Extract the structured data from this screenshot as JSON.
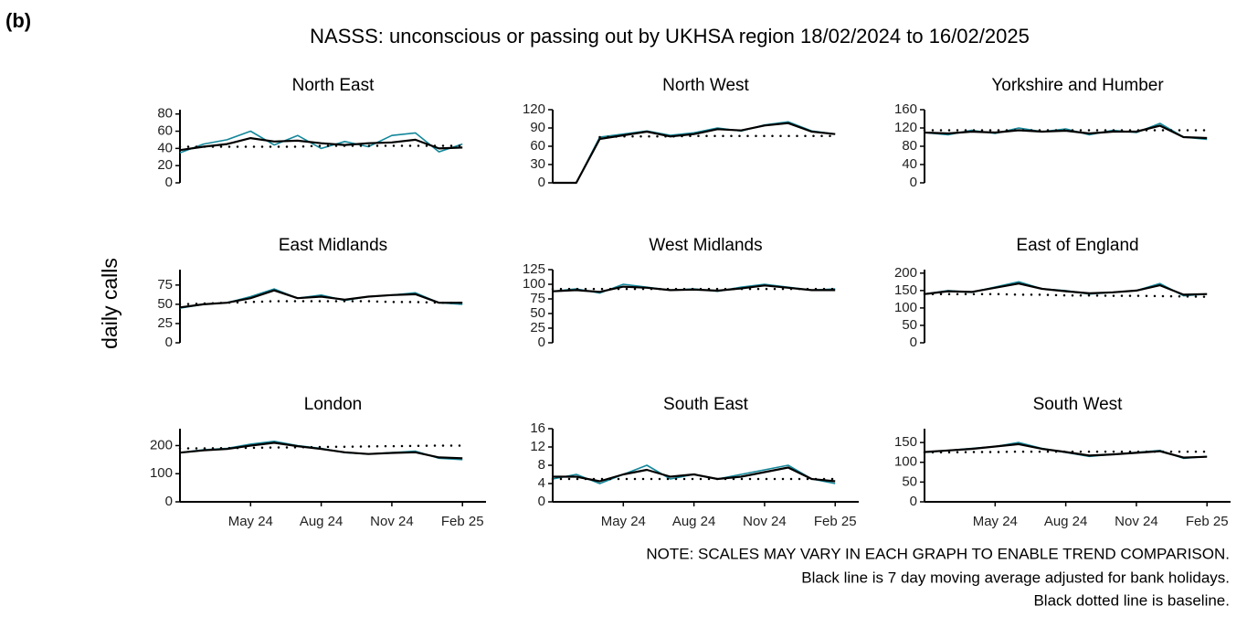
{
  "panel_label": "(b)",
  "title": "NASSS: unconscious or passing out by UKHSA region 18/02/2024 to 16/02/2025",
  "y_label": "daily calls",
  "notes": [
    "NOTE: SCALES MAY VARY IN EACH GRAPH TO ENABLE TREND COMPARISON.",
    "Black line is 7 day moving average adjusted for bank holidays.",
    "Black dotted line is baseline."
  ],
  "chart_data": [
    {
      "type": "line",
      "title": "North East",
      "x": [
        "2024-02",
        "2024-03",
        "2024-04",
        "2024-05",
        "2024-06",
        "2024-07",
        "2024-08",
        "2024-09",
        "2024-10",
        "2024-11",
        "2024-12",
        "2025-01",
        "2025-02"
      ],
      "xlim": [
        "2024-02",
        "2025-03"
      ],
      "ylim": [
        0,
        85
      ],
      "yticks": [
        0,
        20,
        40,
        60,
        80
      ],
      "series": [
        {
          "color": "#13879a",
          "style": "solid",
          "values": [
            35,
            45,
            50,
            60,
            44,
            55,
            40,
            48,
            42,
            55,
            58,
            36,
            45
          ]
        },
        {
          "color": "#000000",
          "style": "solid",
          "values": [
            38,
            42,
            45,
            52,
            48,
            49,
            46,
            44,
            46,
            47,
            50,
            40,
            41
          ]
        },
        {
          "color": "#000000",
          "style": "dotted",
          "values": [
            42,
            42,
            42,
            42,
            42,
            42,
            43,
            43,
            43,
            43,
            43,
            43,
            43
          ]
        }
      ]
    },
    {
      "type": "line",
      "title": "North West",
      "x": [
        "2024-02",
        "2024-03",
        "2024-04",
        "2024-05",
        "2024-06",
        "2024-07",
        "2024-08",
        "2024-09",
        "2024-10",
        "2024-11",
        "2024-12",
        "2025-01",
        "2025-02"
      ],
      "xlim": [
        "2024-02",
        "2025-03"
      ],
      "ylim": [
        0,
        120
      ],
      "yticks": [
        0,
        30,
        60,
        90,
        120
      ],
      "series": [
        {
          "color": "#13879a",
          "style": "solid",
          "values": [
            0,
            0,
            75,
            80,
            85,
            78,
            82,
            90,
            85,
            95,
            100,
            85,
            80
          ]
        },
        {
          "color": "#000000",
          "style": "solid",
          "values": [
            0,
            0,
            72,
            78,
            84,
            76,
            80,
            88,
            86,
            94,
            98,
            84,
            80
          ]
        },
        {
          "color": "#000000",
          "style": "dotted",
          "values": [
            null,
            null,
            75,
            76,
            76,
            76,
            77,
            77,
            77,
            77,
            77,
            77,
            77
          ]
        }
      ]
    },
    {
      "type": "line",
      "title": "Yorkshire and Humber",
      "x": [
        "2024-02",
        "2024-03",
        "2024-04",
        "2024-05",
        "2024-06",
        "2024-07",
        "2024-08",
        "2024-09",
        "2024-10",
        "2024-11",
        "2024-12",
        "2025-01",
        "2025-02"
      ],
      "xlim": [
        "2024-02",
        "2025-03"
      ],
      "ylim": [
        0,
        160
      ],
      "yticks": [
        0,
        40,
        80,
        120,
        160
      ],
      "series": [
        {
          "color": "#13879a",
          "style": "solid",
          "values": [
            110,
            105,
            115,
            108,
            120,
            112,
            118,
            105,
            115,
            110,
            130,
            100,
            95
          ]
        },
        {
          "color": "#000000",
          "style": "solid",
          "values": [
            110,
            108,
            112,
            110,
            115,
            112,
            114,
            108,
            112,
            112,
            125,
            100,
            98
          ]
        },
        {
          "color": "#000000",
          "style": "dotted",
          "values": [
            115,
            115,
            115,
            115,
            115,
            115,
            115,
            115,
            115,
            115,
            115,
            115,
            115
          ]
        }
      ]
    },
    {
      "type": "line",
      "title": "East Midlands",
      "x": [
        "2024-02",
        "2024-03",
        "2024-04",
        "2024-05",
        "2024-06",
        "2024-07",
        "2024-08",
        "2024-09",
        "2024-10",
        "2024-11",
        "2024-12",
        "2025-01",
        "2025-02"
      ],
      "xlim": [
        "2024-02",
        "2025-03"
      ],
      "ylim": [
        0,
        95
      ],
      "yticks": [
        0,
        25,
        50,
        75
      ],
      "series": [
        {
          "color": "#13879a",
          "style": "solid",
          "values": [
            45,
            50,
            52,
            60,
            70,
            58,
            62,
            55,
            60,
            62,
            65,
            52,
            50
          ]
        },
        {
          "color": "#000000",
          "style": "solid",
          "values": [
            46,
            50,
            52,
            58,
            68,
            58,
            60,
            56,
            60,
            62,
            63,
            52,
            52
          ]
        },
        {
          "color": "#000000",
          "style": "dotted",
          "values": [
            50,
            51,
            52,
            53,
            54,
            54,
            54,
            54,
            54,
            53,
            53,
            52,
            52
          ]
        }
      ]
    },
    {
      "type": "line",
      "title": "West Midlands",
      "x": [
        "2024-02",
        "2024-03",
        "2024-04",
        "2024-05",
        "2024-06",
        "2024-07",
        "2024-08",
        "2024-09",
        "2024-10",
        "2024-11",
        "2024-12",
        "2025-01",
        "2025-02"
      ],
      "xlim": [
        "2024-02",
        "2025-03"
      ],
      "ylim": [
        0,
        125
      ],
      "yticks": [
        0,
        25,
        50,
        75,
        100,
        125
      ],
      "series": [
        {
          "color": "#13879a",
          "style": "solid",
          "values": [
            88,
            92,
            85,
            100,
            95,
            90,
            92,
            88,
            95,
            100,
            95,
            90,
            92
          ]
        },
        {
          "color": "#000000",
          "style": "solid",
          "values": [
            88,
            90,
            87,
            96,
            94,
            90,
            91,
            89,
            93,
            98,
            94,
            90,
            90
          ]
        },
        {
          "color": "#000000",
          "style": "dotted",
          "values": [
            92,
            92,
            92,
            92,
            92,
            92,
            92,
            92,
            92,
            92,
            92,
            92,
            92
          ]
        }
      ]
    },
    {
      "type": "line",
      "title": "East of England",
      "x": [
        "2024-02",
        "2024-03",
        "2024-04",
        "2024-05",
        "2024-06",
        "2024-07",
        "2024-08",
        "2024-09",
        "2024-10",
        "2024-11",
        "2024-12",
        "2025-01",
        "2025-02"
      ],
      "xlim": [
        "2024-02",
        "2025-03"
      ],
      "ylim": [
        0,
        210
      ],
      "yticks": [
        0,
        50,
        100,
        150,
        200
      ],
      "series": [
        {
          "color": "#13879a",
          "style": "solid",
          "values": [
            140,
            150,
            145,
            160,
            175,
            155,
            150,
            140,
            145,
            150,
            170,
            135,
            140
          ]
        },
        {
          "color": "#000000",
          "style": "solid",
          "values": [
            140,
            148,
            146,
            158,
            170,
            155,
            148,
            142,
            145,
            150,
            165,
            138,
            140
          ]
        },
        {
          "color": "#000000",
          "style": "dotted",
          "values": [
            140,
            140,
            140,
            140,
            138,
            138,
            136,
            136,
            135,
            135,
            134,
            133,
            132
          ]
        }
      ]
    },
    {
      "type": "line",
      "title": "London",
      "x": [
        "2024-02",
        "2024-03",
        "2024-04",
        "2024-05",
        "2024-06",
        "2024-07",
        "2024-08",
        "2024-09",
        "2024-10",
        "2024-11",
        "2024-12",
        "2025-01",
        "2025-02"
      ],
      "xlim": [
        "2024-02",
        "2025-03"
      ],
      "ylim": [
        0,
        260
      ],
      "yticks": [
        0,
        100,
        200
      ],
      "xticks": [
        {
          "value": "2024-05",
          "label": "May 24"
        },
        {
          "value": "2024-08",
          "label": "Aug 24"
        },
        {
          "value": "2024-11",
          "label": "Nov 24"
        },
        {
          "value": "2025-02",
          "label": "Feb 25"
        }
      ],
      "series": [
        {
          "color": "#13879a",
          "style": "solid",
          "values": [
            175,
            185,
            190,
            205,
            215,
            200,
            190,
            175,
            170,
            175,
            180,
            155,
            150
          ]
        },
        {
          "color": "#000000",
          "style": "solid",
          "values": [
            175,
            183,
            188,
            200,
            210,
            198,
            188,
            176,
            170,
            174,
            176,
            158,
            155
          ]
        },
        {
          "color": "#000000",
          "style": "dotted",
          "values": [
            190,
            190,
            191,
            192,
            193,
            194,
            195,
            196,
            197,
            198,
            199,
            200,
            200
          ]
        }
      ]
    },
    {
      "type": "line",
      "title": "South East",
      "x": [
        "2024-02",
        "2024-03",
        "2024-04",
        "2024-05",
        "2024-06",
        "2024-07",
        "2024-08",
        "2024-09",
        "2024-10",
        "2024-11",
        "2024-12",
        "2025-01",
        "2025-02"
      ],
      "xlim": [
        "2024-02",
        "2025-03"
      ],
      "ylim": [
        0,
        16
      ],
      "yticks": [
        0,
        4,
        8,
        12,
        16
      ],
      "xticks": [
        {
          "value": "2024-05",
          "label": "May 24"
        },
        {
          "value": "2024-08",
          "label": "Aug 24"
        },
        {
          "value": "2024-11",
          "label": "Nov 24"
        },
        {
          "value": "2025-02",
          "label": "Feb 25"
        }
      ],
      "series": [
        {
          "color": "#13879a",
          "style": "solid",
          "values": [
            5,
            6,
            4,
            6,
            8,
            5,
            6,
            5,
            6,
            7,
            8,
            5,
            4
          ]
        },
        {
          "color": "#000000",
          "style": "solid",
          "values": [
            5.5,
            5.5,
            4.5,
            6,
            7,
            5.5,
            6,
            5,
            5.5,
            6.5,
            7.5,
            5,
            4.5
          ]
        },
        {
          "color": "#000000",
          "style": "dotted",
          "values": [
            5,
            5,
            5,
            5,
            5,
            5,
            5,
            5,
            5,
            5,
            5,
            5,
            5
          ]
        }
      ]
    },
    {
      "type": "line",
      "title": "South West",
      "x": [
        "2024-02",
        "2024-03",
        "2024-04",
        "2024-05",
        "2024-06",
        "2024-07",
        "2024-08",
        "2024-09",
        "2024-10",
        "2024-11",
        "2024-12",
        "2025-01",
        "2025-02"
      ],
      "xlim": [
        "2024-02",
        "2025-03"
      ],
      "ylim": [
        0,
        185
      ],
      "yticks": [
        0,
        50,
        100,
        150
      ],
      "xticks": [
        {
          "value": "2024-05",
          "label": "May 24"
        },
        {
          "value": "2024-08",
          "label": "Aug 24"
        },
        {
          "value": "2024-11",
          "label": "Nov 24"
        },
        {
          "value": "2025-02",
          "label": "Feb 25"
        }
      ],
      "series": [
        {
          "color": "#13879a",
          "style": "solid",
          "values": [
            125,
            130,
            135,
            140,
            150,
            135,
            125,
            115,
            120,
            125,
            130,
            110,
            115
          ]
        },
        {
          "color": "#000000",
          "style": "solid",
          "values": [
            126,
            130,
            134,
            140,
            146,
            134,
            126,
            117,
            120,
            124,
            128,
            112,
            114
          ]
        },
        {
          "color": "#000000",
          "style": "dotted",
          "values": [
            125,
            125,
            126,
            126,
            127,
            127,
            127,
            127,
            127,
            127,
            127,
            127,
            127
          ]
        }
      ]
    }
  ]
}
